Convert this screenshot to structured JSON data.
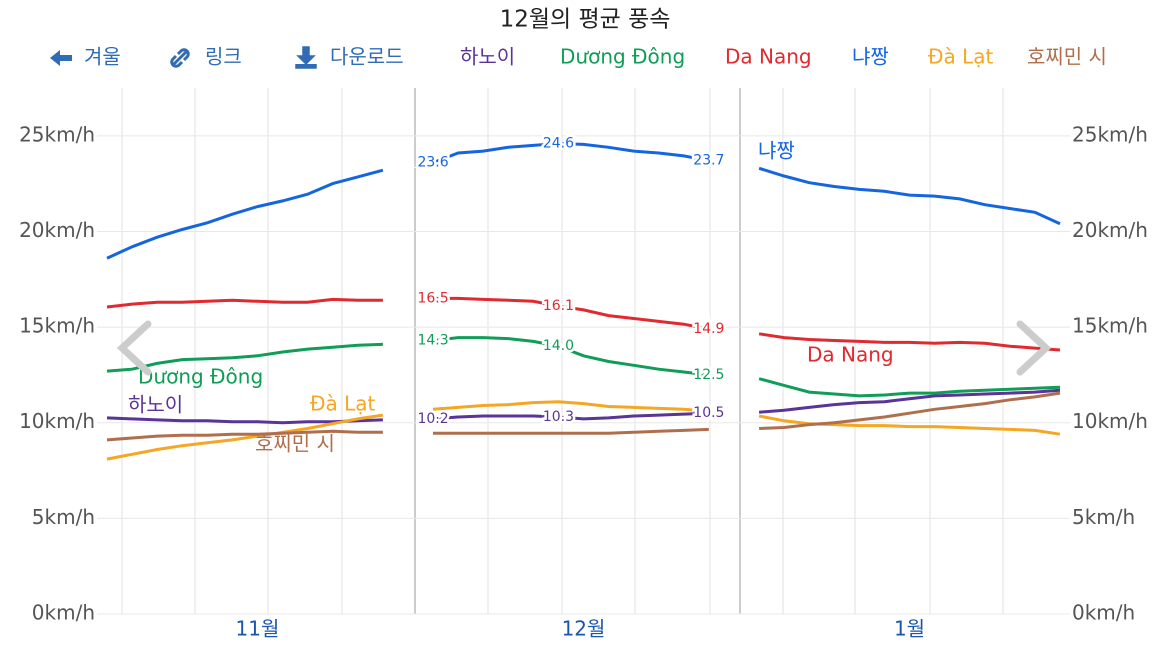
{
  "toolbar": {
    "prev": "겨울",
    "link": "링크",
    "download": "다운로드"
  },
  "chart_data": {
    "type": "line",
    "title": "12월의 평균 풍속",
    "categories": [
      null,
      null,
      null,
      null,
      null,
      null,
      "11월",
      null,
      null,
      null,
      null,
      null,
      null,
      null,
      null,
      null,
      null,
      null,
      null,
      "12월",
      null,
      null,
      null,
      null,
      null,
      null,
      null,
      null,
      null,
      null,
      null,
      null,
      "1월",
      null,
      null,
      null,
      null,
      null,
      null
    ],
    "ylim": [
      0,
      27.5
    ],
    "yticks": [
      {
        "value": 0,
        "label": "0km/h"
      },
      {
        "value": 5,
        "label": "5km/h"
      },
      {
        "value": 10,
        "label": "10km/h"
      },
      {
        "value": 15,
        "label": "15km/h"
      },
      {
        "value": 20,
        "label": "20km/h"
      },
      {
        "value": 25,
        "label": "25km/h"
      }
    ],
    "grid": true,
    "data_label_points": [
      13,
      18,
      24
    ],
    "series": [
      {
        "name": "하노이",
        "color": "#5a3497",
        "data_labels": true,
        "values": [
          10.25,
          10.2,
          10.15,
          10.1,
          10.1,
          10.05,
          10.05,
          10.0,
          10.05,
          10.05,
          10.1,
          10.15,
          null,
          10.2,
          10.3,
          10.35,
          10.35,
          10.35,
          10.3,
          10.2,
          10.25,
          10.35,
          10.4,
          10.45,
          10.5,
          null,
          10.55,
          10.65,
          10.8,
          10.95,
          11.05,
          11.1,
          11.25,
          11.4,
          11.45,
          11.5,
          11.55,
          11.6,
          11.7
        ]
      },
      {
        "name": "Dương Đông",
        "color": "#0f9d58",
        "data_labels": true,
        "values": [
          12.7,
          12.8,
          13.1,
          13.3,
          13.35,
          13.4,
          13.5,
          13.7,
          13.85,
          13.95,
          14.05,
          14.1,
          null,
          14.3,
          14.45,
          14.45,
          14.4,
          14.25,
          14.0,
          13.5,
          13.2,
          13.0,
          12.8,
          12.65,
          12.5,
          null,
          12.3,
          11.95,
          11.6,
          11.5,
          11.4,
          11.45,
          11.55,
          11.55,
          11.65,
          11.7,
          11.75,
          11.8,
          11.85
        ],
        "value_labels": [
          null,
          null,
          null,
          null,
          null,
          null,
          null,
          null,
          null,
          null,
          null,
          null,
          null,
          null,
          null,
          null,
          null,
          null,
          "14.0",
          null,
          null,
          null,
          null,
          null,
          null,
          null,
          null,
          null,
          null,
          null,
          null,
          null,
          null,
          null,
          null,
          null,
          null,
          null,
          null
        ]
      },
      {
        "name": "Da Nang",
        "color": "#e02a2f",
        "data_labels": true,
        "values": [
          16.05,
          16.2,
          16.3,
          16.3,
          16.35,
          16.4,
          16.35,
          16.3,
          16.3,
          16.45,
          16.4,
          16.4,
          null,
          16.5,
          16.5,
          16.45,
          16.4,
          16.35,
          16.1,
          15.9,
          15.6,
          15.45,
          15.3,
          15.15,
          14.9,
          null,
          14.65,
          14.45,
          14.35,
          14.3,
          14.25,
          14.2,
          14.2,
          14.15,
          14.2,
          14.15,
          14.0,
          13.9,
          13.8
        ]
      },
      {
        "name": "냐짱",
        "color": "#1565e0",
        "data_labels": true,
        "values": [
          18.6,
          19.2,
          19.7,
          20.1,
          20.45,
          20.9,
          21.3,
          21.6,
          21.95,
          22.5,
          22.85,
          23.2,
          null,
          23.6,
          24.1,
          24.2,
          24.4,
          24.5,
          24.6,
          24.55,
          24.4,
          24.2,
          24.1,
          23.95,
          23.7,
          null,
          23.3,
          22.9,
          22.55,
          22.35,
          22.2,
          22.1,
          21.9,
          21.85,
          21.7,
          21.4,
          21.2,
          21.0,
          20.4
        ]
      },
      {
        "name": "Đà Lạt",
        "color": "#f5a623",
        "values": [
          8.1,
          8.35,
          8.6,
          8.8,
          8.95,
          9.1,
          9.3,
          9.5,
          9.7,
          9.95,
          10.2,
          10.4,
          null,
          10.7,
          10.8,
          10.9,
          10.95,
          11.05,
          11.1,
          11.0,
          10.85,
          10.8,
          10.75,
          10.7,
          10.6,
          null,
          10.35,
          10.1,
          9.95,
          9.9,
          9.85,
          9.85,
          9.8,
          9.8,
          9.75,
          9.7,
          9.65,
          9.6,
          9.4
        ]
      },
      {
        "name": "호찌민 시",
        "color": "#b06f4c",
        "values": [
          9.1,
          9.2,
          9.3,
          9.35,
          9.35,
          9.4,
          9.4,
          9.45,
          9.5,
          9.55,
          9.5,
          9.5,
          null,
          9.45,
          9.45,
          9.45,
          9.45,
          9.45,
          9.45,
          9.45,
          9.45,
          9.5,
          9.55,
          9.6,
          9.65,
          null,
          9.7,
          9.75,
          9.9,
          10.0,
          10.15,
          10.3,
          10.5,
          10.7,
          10.85,
          11.0,
          11.2,
          11.35,
          11.55
        ]
      }
    ]
  }
}
